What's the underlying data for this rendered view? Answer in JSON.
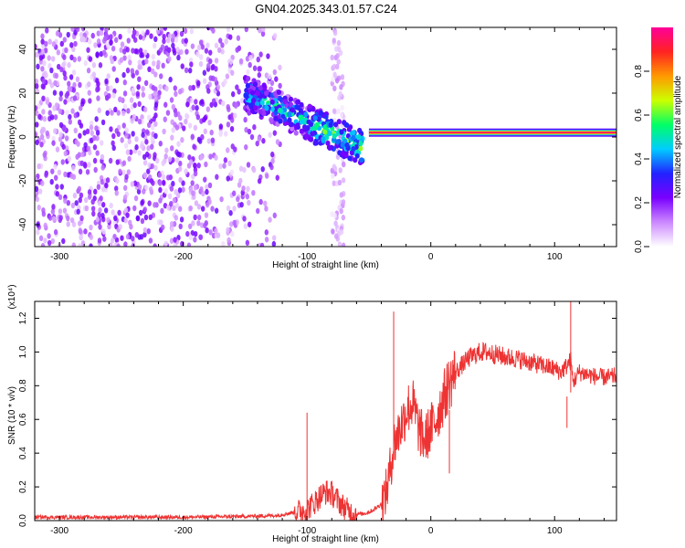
{
  "title": "GN04.2025.343.01.57.C24",
  "colors": {
    "snr_line": "#ee3333",
    "background": "#ffffff",
    "axis": "#000000",
    "colorbar": [
      "#ffffff",
      "#cc88ff",
      "#7a00ff",
      "#2222ff",
      "#00ccff",
      "#00ff66",
      "#ccff00",
      "#ff9900",
      "#ff2222",
      "#ff0099"
    ]
  },
  "chart_data": [
    {
      "type": "heatmap",
      "name": "spectrogram",
      "xlabel": "Height of straight line (km)",
      "ylabel": "Frequency (Hz)",
      "xlim": [
        -320,
        150
      ],
      "ylim": [
        -50,
        50
      ],
      "xticks": [
        -300,
        -200,
        -100,
        0,
        100
      ],
      "xtick_labels": [
        "-300",
        "-200",
        "-100",
        "0",
        "100"
      ],
      "yticks": [
        -40,
        -20,
        0,
        20,
        40
      ],
      "ytick_labels": [
        "-40",
        "-20",
        "0",
        "20",
        "40"
      ],
      "colorbar": {
        "label": "Normalized spectral amplitude",
        "range": [
          0,
          1
        ],
        "ticks": [
          0.0,
          0.2,
          0.4,
          0.6,
          0.8
        ],
        "tick_labels": [
          "0.0",
          "0.2",
          "0.4",
          "0.6",
          "0.8"
        ]
      },
      "features": [
        {
          "region": "diffuse noise",
          "x_range": [
            -320,
            -120
          ],
          "freq_range": [
            -50,
            50
          ],
          "amplitude": 0.1
        },
        {
          "region": "noise streak",
          "x_range": [
            -80,
            -70
          ],
          "freq_range": [
            -50,
            50
          ],
          "amplitude": 0.05
        },
        {
          "region": "descending band",
          "x_start": -150,
          "x_end": -55,
          "freq_start": 20,
          "freq_end": -5,
          "amplitude": 0.25
        },
        {
          "region": "steady carrier",
          "x_range": [
            -50,
            150
          ],
          "freq": 2,
          "amplitude": 0.95
        }
      ]
    },
    {
      "type": "line",
      "name": "snr",
      "xlabel": "Height of straight line (km)",
      "ylabel": "SNR (10 * v/v)",
      "y_multiplier_label": "(x10⁴)",
      "xlim": [
        -320,
        150
      ],
      "ylim": [
        0,
        1.3
      ],
      "xticks": [
        -300,
        -200,
        -100,
        0,
        100
      ],
      "xtick_labels": [
        "-300",
        "-200",
        "-100",
        "0",
        "100"
      ],
      "yticks": [
        0.0,
        0.2,
        0.4,
        0.6,
        0.8,
        1.0,
        1.2
      ],
      "ytick_labels": [
        "0.0",
        "0.2",
        "0.4",
        "0.6",
        "0.8",
        "1.0",
        "1.2"
      ],
      "series": [
        {
          "name": "SNR",
          "x": [
            -320,
            -250,
            -200,
            -150,
            -125,
            -110,
            -100,
            -95,
            -90,
            -85,
            -80,
            -75,
            -70,
            -65,
            -60,
            -55,
            -50,
            -45,
            -40,
            -37,
            -35,
            -32,
            -30,
            -27,
            -25,
            -22,
            -20,
            -17,
            -15,
            -12,
            -10,
            -7,
            -5,
            -2,
            0,
            3,
            5,
            8,
            10,
            13,
            15,
            20,
            25,
            30,
            35,
            40,
            45,
            50,
            60,
            70,
            80,
            90,
            100,
            105,
            110,
            113,
            115,
            118,
            120,
            125,
            130,
            135,
            140,
            145,
            150
          ],
          "values": [
            0.02,
            0.02,
            0.02,
            0.025,
            0.03,
            0.05,
            0.07,
            0.1,
            0.14,
            0.17,
            0.16,
            0.12,
            0.08,
            0.05,
            0.04,
            0.04,
            0.05,
            0.07,
            0.1,
            0.15,
            0.2,
            0.35,
            0.45,
            0.5,
            0.55,
            0.6,
            0.65,
            0.68,
            0.7,
            0.62,
            0.55,
            0.5,
            0.48,
            0.52,
            0.55,
            0.58,
            0.62,
            0.68,
            0.72,
            0.78,
            0.82,
            0.88,
            0.92,
            0.96,
            0.98,
            1.0,
            1.0,
            0.99,
            0.97,
            0.96,
            0.94,
            0.92,
            0.9,
            0.88,
            0.92,
            0.95,
            0.82,
            0.86,
            0.88,
            0.87,
            0.86,
            0.85,
            0.85,
            0.85,
            0.86
          ],
          "spikes": [
            {
              "x": -100,
              "value": 0.64
            },
            {
              "x": -30,
              "value": 1.24
            },
            {
              "x": 15,
              "value": 0.28
            },
            {
              "x": 110,
              "value": 0.55
            },
            {
              "x": 113,
              "value": 1.3
            }
          ]
        }
      ]
    }
  ]
}
